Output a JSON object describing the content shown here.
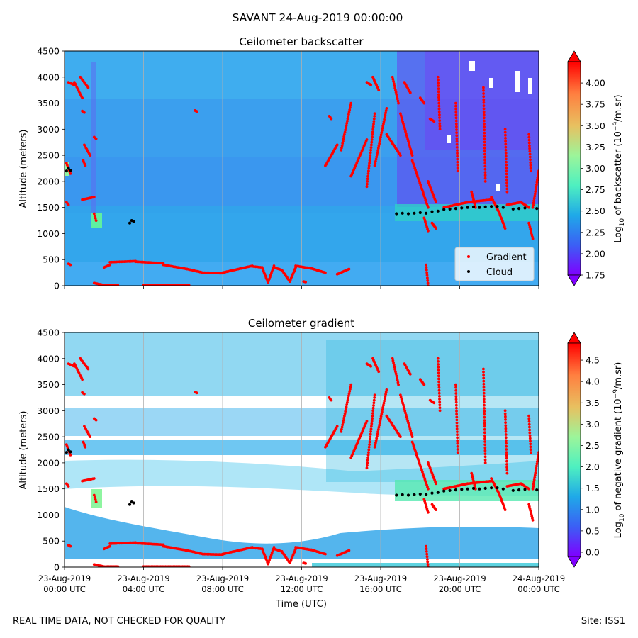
{
  "figure": {
    "suptitle": "SAVANT 24-Aug-2019 00:00:00",
    "footer_left": "REAL TIME DATA, NOT CHECKED FOR QUALITY",
    "footer_right": "Site: ISS1",
    "xlabel": "Time (UTC)",
    "colors": {
      "background_backscatter": "#3ea0f0",
      "gradient_marker": "#ff0000",
      "cloud_marker": "#000000",
      "colormap": [
        "#7f00ff",
        "#3b5ff5",
        "#1fa9e8",
        "#4ef0c0",
        "#9cf59a",
        "#e8c060",
        "#ff7f40",
        "#ff0000"
      ]
    }
  },
  "chart_data": [
    {
      "type": "heatmap",
      "title": "Ceilometer backscatter",
      "ylabel": "Altitude (meters)",
      "ylim": [
        0,
        4500
      ],
      "yticks": [
        "0",
        "500",
        "1000",
        "1500",
        "2000",
        "2500",
        "3000",
        "3500",
        "4000",
        "4500"
      ],
      "xlim": [
        "23-Aug-2019 00:00",
        "24-Aug-2019 00:00"
      ],
      "xgrid": true,
      "colorbar": {
        "label_prefix": "Log",
        "label_sub": "10",
        "label_main": " of backscatter (10",
        "label_sup": "−9",
        "label_suffix": "/m.sr)",
        "range": [
          1.75,
          4.25
        ],
        "ticks": [
          "1.75",
          "2.00",
          "2.25",
          "2.50",
          "2.75",
          "3.00",
          "3.25",
          "3.50",
          "3.75",
          "4.00"
        ]
      },
      "legend": {
        "placement": "lower-right",
        "entries": [
          {
            "label": "Gradient",
            "color": "#ff0000"
          },
          {
            "label": "Cloud",
            "color": "#000000"
          }
        ]
      }
    },
    {
      "type": "heatmap",
      "title": "Ceilometer gradient",
      "ylabel": "Altitude (meters)",
      "ylim": [
        0,
        4500
      ],
      "yticks": [
        "0",
        "500",
        "1000",
        "1500",
        "2000",
        "2500",
        "3000",
        "3500",
        "4000",
        "4500"
      ],
      "xlim": [
        "23-Aug-2019 00:00",
        "24-Aug-2019 00:00"
      ],
      "xticks": [
        {
          "date": "23-Aug-2019",
          "time": "00:00 UTC"
        },
        {
          "date": "23-Aug-2019",
          "time": "04:00 UTC"
        },
        {
          "date": "23-Aug-2019",
          "time": "08:00 UTC"
        },
        {
          "date": "23-Aug-2019",
          "time": "12:00 UTC"
        },
        {
          "date": "23-Aug-2019",
          "time": "16:00 UTC"
        },
        {
          "date": "23-Aug-2019",
          "time": "20:00 UTC"
        },
        {
          "date": "24-Aug-2019",
          "time": "00:00 UTC"
        }
      ],
      "xgrid": true,
      "colorbar": {
        "label_prefix": "Log",
        "label_sub": "10",
        "label_main": " of negative gradient (10",
        "label_sup": "−9",
        "label_suffix": "/m.sr)",
        "range": [
          -0.1,
          4.9
        ],
        "ticks": [
          "0.0",
          "0.5",
          "1.0",
          "1.5",
          "2.0",
          "2.5",
          "3.0",
          "3.5",
          "4.0",
          "4.5"
        ]
      }
    }
  ],
  "series": {
    "cloud": {
      "name": "Cloud",
      "points": [
        [
          0.1,
          2200
        ],
        [
          0.2,
          2250
        ],
        [
          0.3,
          2210
        ],
        [
          3.3,
          1200
        ],
        [
          3.4,
          1250
        ],
        [
          3.5,
          1230
        ],
        [
          16.8,
          1380
        ],
        [
          17.1,
          1390
        ],
        [
          17.4,
          1380
        ],
        [
          17.7,
          1390
        ],
        [
          18.0,
          1400
        ],
        [
          18.3,
          1390
        ],
        [
          18.6,
          1420
        ],
        [
          18.9,
          1430
        ],
        [
          19.2,
          1460
        ],
        [
          19.5,
          1470
        ],
        [
          19.8,
          1480
        ],
        [
          20.1,
          1490
        ],
        [
          20.4,
          1500
        ],
        [
          20.7,
          1510
        ],
        [
          21.0,
          1500
        ],
        [
          21.3,
          1510
        ],
        [
          21.6,
          1520
        ],
        [
          21.9,
          1520
        ],
        [
          22.2,
          1500
        ],
        [
          22.7,
          1470
        ],
        [
          23.0,
          1480
        ],
        [
          23.3,
          1490
        ],
        [
          23.9,
          1480
        ]
      ]
    },
    "gradient": {
      "name": "Gradient",
      "tracks": [
        {
          "t0": 0.1,
          "t1": 0.3,
          "y0": 2350,
          "y1": 2150
        },
        {
          "t0": 0.1,
          "t1": 0.2,
          "y0": 1600,
          "y1": 1550
        },
        {
          "t0": 0.2,
          "t1": 0.3,
          "y0": 420,
          "y1": 400
        },
        {
          "t0": 0.2,
          "t1": 0.5,
          "y0": 3900,
          "y1": 3850
        },
        {
          "t0": 0.5,
          "t1": 0.9,
          "y0": 3900,
          "y1": 3600
        },
        {
          "t0": 0.9,
          "t1": 1.0,
          "y0": 3350,
          "y1": 3320
        },
        {
          "t0": 0.95,
          "t1": 1.05,
          "y0": 2400,
          "y1": 2300
        },
        {
          "t0": 0.8,
          "t1": 1.2,
          "y0": 4000,
          "y1": 3800
        },
        {
          "t0": 1.0,
          "t1": 1.3,
          "y0": 2700,
          "y1": 2500
        },
        {
          "t0": 0.9,
          "t1": 1.5,
          "y0": 1650,
          "y1": 1700
        },
        {
          "t0": 1.5,
          "t1": 1.6,
          "y0": 2850,
          "y1": 2820
        },
        {
          "t0": 1.5,
          "t1": 1.6,
          "y0": 1380,
          "y1": 1250
        },
        {
          "t0": 1.5,
          "t1": 2.0,
          "y0": 50,
          "y1": 10
        },
        {
          "t0": 2.0,
          "t1": 2.3,
          "y0": 350,
          "y1": 400
        },
        {
          "t0": 2.3,
          "t1": 3.6,
          "y0": 450,
          "y1": 470
        },
        {
          "t0": 2.1,
          "t1": 2.7,
          "y0": 10,
          "y1": 10
        },
        {
          "t0": 3.6,
          "t1": 5.0,
          "y0": 460,
          "y1": 430
        },
        {
          "t0": 5.0,
          "t1": 6.2,
          "y0": 400,
          "y1": 320
        },
        {
          "t0": 4.0,
          "t1": 6.3,
          "y0": 10,
          "y1": 10
        },
        {
          "t0": 6.2,
          "t1": 7.0,
          "y0": 320,
          "y1": 250
        },
        {
          "t0": 7.0,
          "t1": 8.0,
          "y0": 250,
          "y1": 240
        },
        {
          "t0": 6.6,
          "t1": 6.7,
          "y0": 3360,
          "y1": 3340
        },
        {
          "t0": 8.0,
          "t1": 9.5,
          "y0": 250,
          "y1": 380
        },
        {
          "t0": 9.5,
          "t1": 10.0,
          "y0": 370,
          "y1": 350
        },
        {
          "t0": 10.0,
          "t1": 10.3,
          "y0": 350,
          "y1": 60
        },
        {
          "t0": 10.3,
          "t1": 10.6,
          "y0": 60,
          "y1": 380
        },
        {
          "t0": 10.6,
          "t1": 11.0,
          "y0": 350,
          "y1": 300
        },
        {
          "t0": 11.0,
          "t1": 11.4,
          "y0": 300,
          "y1": 80
        },
        {
          "t0": 11.4,
          "t1": 11.7,
          "y0": 80,
          "y1": 350
        },
        {
          "t0": 11.7,
          "t1": 12.5,
          "y0": 380,
          "y1": 330
        },
        {
          "t0": 12.5,
          "t1": 13.2,
          "y0": 330,
          "y1": 250
        },
        {
          "t0": 13.8,
          "t1": 14.4,
          "y0": 220,
          "y1": 320
        },
        {
          "t0": 12.1,
          "t1": 12.2,
          "y0": 80,
          "y1": 70
        },
        {
          "t0": 13.2,
          "t1": 13.8,
          "y0": 2300,
          "y1": 2700
        },
        {
          "t0": 13.4,
          "t1": 13.5,
          "y0": 3250,
          "y1": 3200
        },
        {
          "t0": 14.0,
          "t1": 14.5,
          "y0": 2600,
          "y1": 3500
        },
        {
          "t0": 14.5,
          "t1": 15.3,
          "y0": 2100,
          "y1": 2800
        },
        {
          "t0": 15.3,
          "t1": 15.7,
          "y0": 1900,
          "y1": 3300
        },
        {
          "t0": 15.3,
          "t1": 15.5,
          "y0": 3900,
          "y1": 3850
        },
        {
          "t0": 15.7,
          "t1": 16.3,
          "y0": 2300,
          "y1": 3400
        },
        {
          "t0": 15.6,
          "t1": 15.9,
          "y0": 4000,
          "y1": 3750
        },
        {
          "t0": 16.3,
          "t1": 17.0,
          "y0": 2900,
          "y1": 2500
        },
        {
          "t0": 16.6,
          "t1": 16.9,
          "y0": 4000,
          "y1": 3500
        },
        {
          "t0": 17.0,
          "t1": 17.6,
          "y0": 3300,
          "y1": 2500
        },
        {
          "t0": 17.2,
          "t1": 17.5,
          "y0": 3900,
          "y1": 3700
        },
        {
          "t0": 17.6,
          "t1": 18.4,
          "y0": 2400,
          "y1": 1500
        },
        {
          "t0": 18.0,
          "t1": 18.2,
          "y0": 3600,
          "y1": 3500
        },
        {
          "t0": 18.4,
          "t1": 18.8,
          "y0": 2000,
          "y1": 1600
        },
        {
          "t0": 18.5,
          "t1": 18.7,
          "y0": 3200,
          "y1": 3150
        },
        {
          "t0": 18.9,
          "t1": 19.0,
          "y0": 4000,
          "y1": 3000
        },
        {
          "t0": 18.2,
          "t1": 18.4,
          "y0": 1300,
          "y1": 1050
        },
        {
          "t0": 18.6,
          "t1": 18.8,
          "y0": 1200,
          "y1": 1100
        },
        {
          "t0": 18.3,
          "t1": 18.4,
          "y0": 400,
          "y1": 0
        },
        {
          "t0": 19.2,
          "t1": 20.4,
          "y0": 1500,
          "y1": 1600
        },
        {
          "t0": 20.4,
          "t1": 21.6,
          "y0": 1600,
          "y1": 1650
        },
        {
          "t0": 19.8,
          "t1": 19.9,
          "y0": 3500,
          "y1": 2200
        },
        {
          "t0": 20.6,
          "t1": 20.8,
          "y0": 1800,
          "y1": 1500
        },
        {
          "t0": 21.2,
          "t1": 21.3,
          "y0": 3800,
          "y1": 2000
        },
        {
          "t0": 21.6,
          "t1": 22.0,
          "y0": 1700,
          "y1": 1400
        },
        {
          "t0": 22.0,
          "t1": 22.3,
          "y0": 1400,
          "y1": 1100
        },
        {
          "t0": 22.3,
          "t1": 22.4,
          "y0": 3000,
          "y1": 1800
        },
        {
          "t0": 22.4,
          "t1": 23.1,
          "y0": 1550,
          "y1": 1600
        },
        {
          "t0": 23.1,
          "t1": 23.5,
          "y0": 1600,
          "y1": 1500
        },
        {
          "t0": 23.5,
          "t1": 23.6,
          "y0": 2900,
          "y1": 2200
        },
        {
          "t0": 23.5,
          "t1": 23.7,
          "y0": 1200,
          "y1": 900
        },
        {
          "t0": 23.7,
          "t1": 24.0,
          "y0": 1500,
          "y1": 2200
        }
      ]
    }
  }
}
